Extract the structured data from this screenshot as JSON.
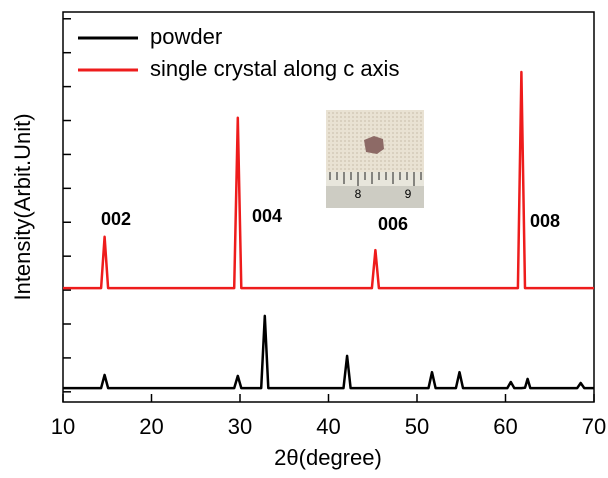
{
  "chart_data": {
    "type": "line",
    "x_label": "2θ(degree)",
    "y_label": "Intensity(Arbit.Unit)",
    "x": [
      10,
      14.3,
      14.7,
      15.1,
      29.35,
      29.75,
      30.15,
      32.4,
      32.8,
      33.2,
      41.7,
      42.1,
      42.5,
      44.9,
      45.3,
      45.7,
      51.3,
      51.7,
      52.1,
      54.4,
      54.8,
      55.2,
      60.2,
      60.6,
      61.0,
      61.4,
      61.8,
      62.2,
      62.5,
      62.8,
      68.1,
      68.5,
      68.9,
      70
    ],
    "series": [
      {
        "name": "powder",
        "color": "#000000",
        "values": [
          0.11,
          0.11,
          0.5,
          0.11,
          0.11,
          0.47,
          0.11,
          0.11,
          2.24,
          0.11,
          0.11,
          1.06,
          0.11,
          0.11,
          0.11,
          0.11,
          0.11,
          0.58,
          0.11,
          0.11,
          0.58,
          0.11,
          0.11,
          0.29,
          0.11,
          0.11,
          0.11,
          0.12,
          0.38,
          0.11,
          0.11,
          0.26,
          0.11,
          0.11
        ]
      },
      {
        "name": "single crystal along c axis",
        "color": "#ee1c1c",
        "values": [
          3.06,
          3.06,
          4.57,
          3.06,
          3.06,
          8.08,
          3.06,
          3.06,
          3.06,
          3.06,
          3.06,
          3.06,
          3.06,
          3.06,
          4.18,
          3.06,
          3.06,
          3.06,
          3.06,
          3.06,
          3.06,
          3.06,
          3.06,
          3.06,
          3.06,
          3.06,
          9.43,
          3.06,
          3.06,
          3.06,
          3.06,
          3.06,
          3.06,
          3.06
        ]
      }
    ],
    "annotations": [
      "002",
      "004",
      "006",
      "008"
    ],
    "inset_ruler_labels": [
      "8",
      "9"
    ],
    "xlim": [
      10,
      70
    ],
    "xticks": [
      10,
      20,
      30,
      40,
      50,
      60,
      70
    ],
    "ylim": [
      -0.3,
      11.2
    ],
    "yticks": [
      0,
      1,
      2,
      3,
      4,
      5,
      6,
      7,
      8,
      9,
      10,
      11
    ],
    "legend": "upper-left"
  }
}
